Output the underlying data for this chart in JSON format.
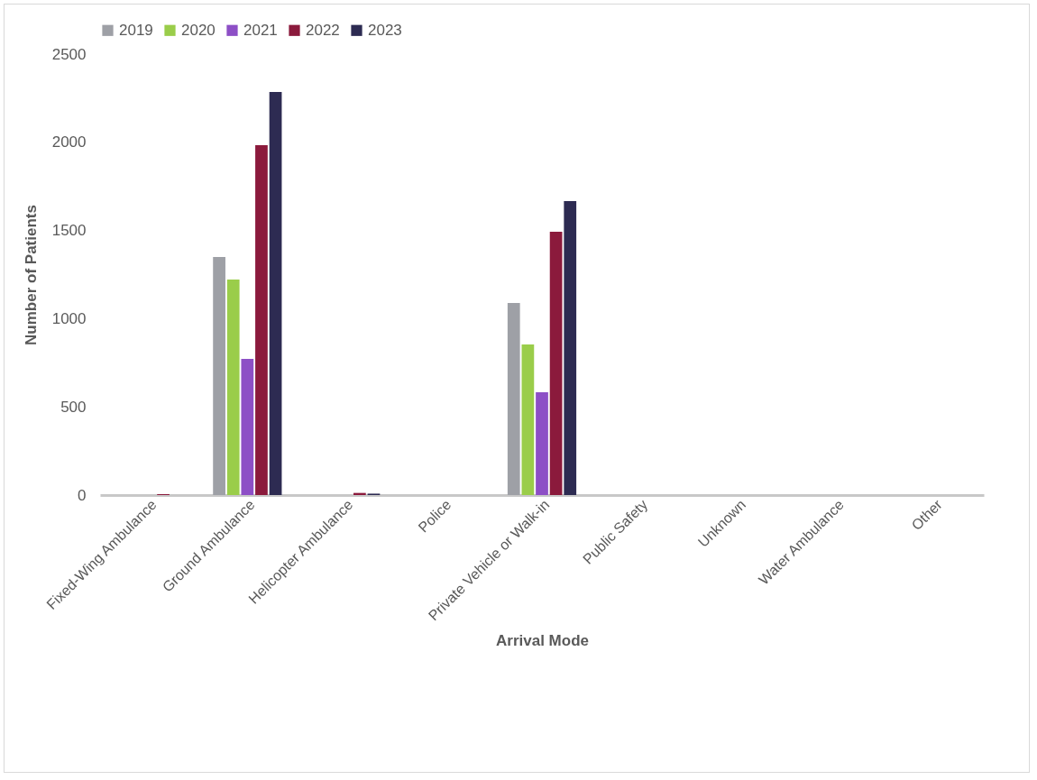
{
  "chart_data": {
    "type": "bar",
    "xlabel": "Arrival Mode",
    "ylabel": "Number of Patients",
    "categories": [
      "Fixed-Wing Ambulance",
      "Ground Ambulance",
      "Helicopter Ambulance",
      "Police",
      "Private Vehicle or Walk-in",
      "Public Safety",
      "Unknown",
      "Water Ambulance",
      "Other"
    ],
    "series": [
      {
        "name": "2019",
        "color": "#9ea0a6",
        "values": [
          0,
          1350,
          0,
          0,
          1089,
          0,
          0,
          0,
          0
        ]
      },
      {
        "name": "2020",
        "color": "#9acd4a",
        "values": [
          0,
          1222,
          0,
          0,
          854,
          0,
          0,
          0,
          0
        ]
      },
      {
        "name": "2021",
        "color": "#8d4fc6",
        "values": [
          0,
          772,
          0,
          0,
          583,
          0,
          0,
          0,
          0
        ]
      },
      {
        "name": "2022",
        "color": "#8b1a3c",
        "values": [
          5,
          1984,
          12,
          0,
          1493,
          0,
          0,
          0,
          0
        ]
      },
      {
        "name": "2023",
        "color": "#2d2b52",
        "values": [
          0,
          2285,
          8,
          0,
          1667,
          0,
          0,
          0,
          0
        ]
      }
    ],
    "ylim": [
      0,
      2500
    ],
    "yticks": [
      0,
      500,
      1000,
      1500,
      2000,
      2500
    ],
    "grid": false,
    "legend": "top"
  }
}
